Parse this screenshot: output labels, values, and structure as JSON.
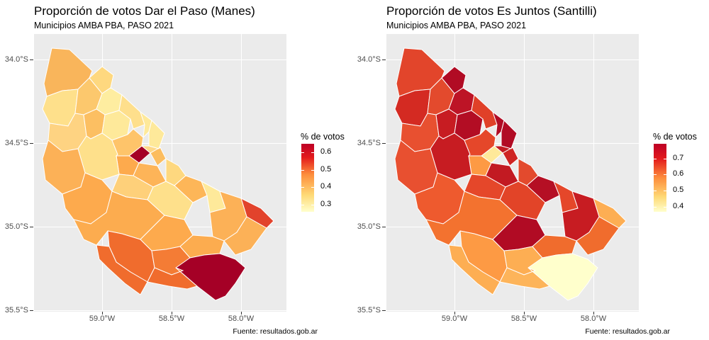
{
  "panels": [
    {
      "title": "Proporción de votos Dar el Paso (Manes)",
      "subtitle": "Municipios AMBA PBA, PASO 2021",
      "source": "Fuente: resultados.gob.ar",
      "legend": {
        "title": "% de votos",
        "labels": [
          "0.6",
          "0.5",
          "0.4",
          "0.3"
        ],
        "low": "#ffffcc",
        "mid": "#fd8d3c",
        "high": "#bd0026"
      },
      "y_labels": [
        "34.0°S",
        "34.5°S",
        "35.0°S",
        "35.5°S"
      ],
      "x_labels": [
        "59.0°W",
        "58.5°W",
        "58.0°W"
      ]
    },
    {
      "title": "Proporción de votos Es Juntos (Santilli)",
      "subtitle": "Municipios AMBA PBA, PASO 2021",
      "source": "Fuente: resultados.gob.ar",
      "legend": {
        "title": "% de votos",
        "labels": [
          "0.7",
          "0.6",
          "0.5",
          "0.4"
        ],
        "low": "#ffffcc",
        "mid": "#fd8d3c",
        "high": "#bd0026"
      },
      "y_labels": [
        "34.0°S",
        "34.5°S",
        "35.0°S",
        "35.5°S"
      ],
      "x_labels": [
        "59.0°W",
        "58.5°W",
        "58.0°W"
      ]
    }
  ]
}
